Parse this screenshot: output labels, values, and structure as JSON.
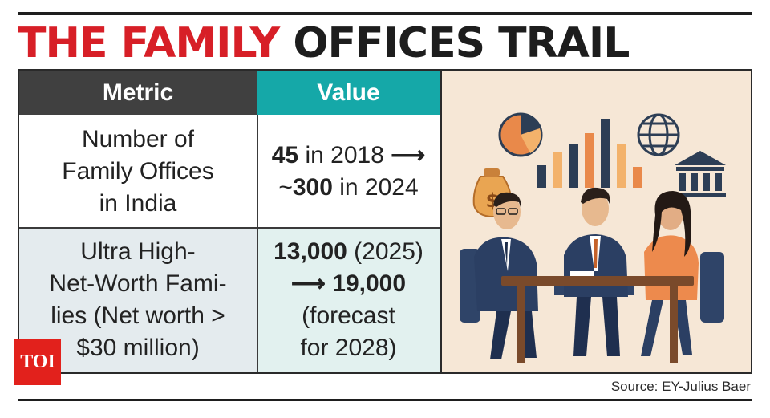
{
  "title": {
    "part1": "THE FAMILY",
    "part2": "OFFICES TRAIL"
  },
  "table": {
    "headers": {
      "metric": "Metric",
      "value": "Value"
    },
    "rows": [
      {
        "metric_lines": [
          "Number of",
          "Family Offices",
          "in India"
        ],
        "value": {
          "n1": "45",
          "t1": " in 2018 ",
          "arrow": "⟶",
          "t2": "~",
          "n2": "300",
          "t3": " in 2024"
        }
      },
      {
        "metric_lines": [
          "Ultra High-",
          "Net-Worth Fami-",
          "lies (Net worth >",
          "$30 million)"
        ],
        "value": {
          "n1": "13,000",
          "t1": " (2025)",
          "arrow": "⟶",
          "n2": "19,000",
          "t2": "(forecast",
          "t3": "for 2028)"
        }
      }
    ]
  },
  "illustration": {
    "icons": [
      "pie-chart-icon",
      "bar-chart-icon",
      "globe-icon",
      "bank-icon",
      "money-bag-icon"
    ],
    "money_bag_symbol": "$"
  },
  "source": "Source: EY-Julius Baer",
  "logo": "TOI",
  "colors": {
    "accent_red": "#d71f27",
    "header_teal": "#15a8a8",
    "header_dark": "#404040"
  }
}
